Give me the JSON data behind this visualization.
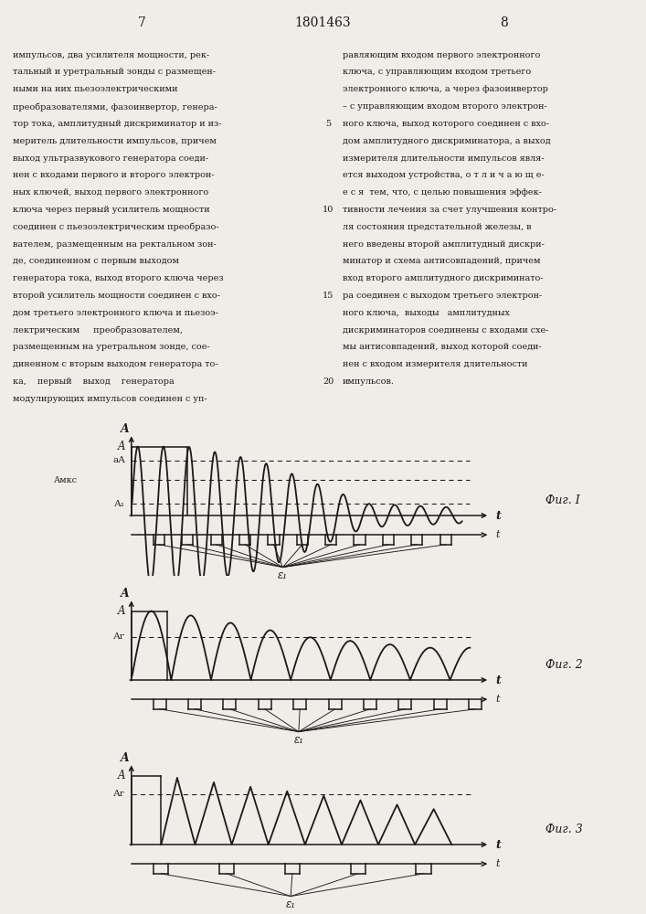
{
  "title": "1801463",
  "page_left": "7",
  "page_right": "8",
  "fig_labels": [
    "Фиг. I",
    "Фиг. 2",
    "Фиг. 3"
  ],
  "bg_color": "#f0ede8",
  "line_color": "#1a1a1a",
  "text_color": "#1a1a1a",
  "text_left": [
    "импульсов, два усилителя мощности, рек-",
    "тальный и уретральный зонды с размещен-",
    "ными на них пьезоэлектрическими",
    "преобразователями, фазоинвертор, генера-",
    "тор тока, амплитудный дискриминатор и из-",
    "меритель длительности импульсов, причем",
    "выход ультразвукового генератора соеди-",
    "нен с входами первого и второго электрон-",
    "ных ключей, выход первого электронного",
    "ключа через первый усилитель мощности",
    "соединен с пьезоэлектрическим преобразо-",
    "вателем, размещенным на ректальном зон-",
    "де, соединенном с первым выходом",
    "генератора тока, выход второго ключа через",
    "второй усилитель мощности соединен с вхо-",
    "дом третьего электронного ключа и пьезоэ-",
    "лектрическим     преобразователем,",
    "размещенным на уретральном зонде, сое-",
    "диненном с вторым выходом генератора то-",
    "ка,    первый    выход    генератора",
    "модулирующих импульсов соединен с уп-"
  ],
  "text_right": [
    "равляющим входом первого электронного",
    "ключа, с управляющим входом третьего",
    "электронного ключа, а через фазоинвертор",
    "– с управляющим входом второго электрон-",
    "ного ключа, выход которого соединен с вхо-",
    "дом амплитудного дискриминатора, а выход",
    "измерителя длительности импульсов явля-",
    "ется выходом устройства, о т л и ч а ю щ е-",
    "е с я  тем, что, с целью повышения эффек-",
    "тивности лечения за счет улучшения контро-",
    "ля состояния предстательной железы, в",
    "него введены второй амплитудный дискри-",
    "минатор и схема антисовпадений, причем",
    "вход второго амплитудного дискриминато-",
    "ра соединен с выходом третьего электрон-",
    "ного ключа,  выходы   амплитудных",
    "дискриминаторов соединены с входами схе-",
    "мы антисовпадений, выход которой соеди-",
    "нен с входом измерителя длительности",
    "импульсов."
  ],
  "line_nums": [
    "5",
    "10",
    "15",
    "20"
  ],
  "line_num_rows": [
    4,
    9,
    14,
    19
  ]
}
